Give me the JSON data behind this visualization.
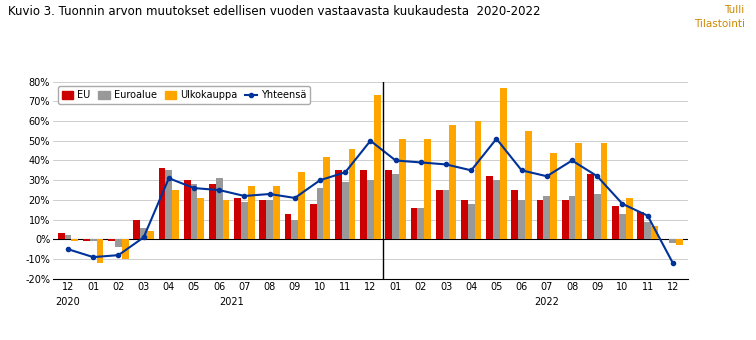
{
  "title": "Kuvio 3. Tuonnin arvon muutokset edellisen vuoden vastaavasta kuukaudesta  2020-2022",
  "watermark": "Tulli\nTilastointi",
  "EU": [
    3,
    -1,
    -1,
    10,
    36,
    30,
    28,
    21,
    20,
    13,
    18,
    35,
    35,
    35,
    16,
    25,
    20,
    32,
    25,
    20,
    20,
    33,
    17,
    14,
    0
  ],
  "Euroalue": [
    2,
    -1,
    -4,
    6,
    35,
    28,
    31,
    19,
    20,
    10,
    26,
    29,
    30,
    33,
    16,
    25,
    18,
    30,
    20,
    22,
    22,
    23,
    13,
    9,
    -2
  ],
  "Ulkokauppa": [
    -1,
    -12,
    -10,
    4,
    25,
    21,
    20,
    27,
    27,
    34,
    42,
    46,
    73,
    51,
    51,
    58,
    60,
    77,
    55,
    44,
    49,
    49,
    21,
    7,
    -3
  ],
  "Yhteensa": [
    -5,
    -9,
    -8,
    1,
    31,
    26,
    25,
    22,
    23,
    21,
    30,
    34,
    50,
    40,
    39,
    38,
    35,
    51,
    35,
    32,
    40,
    32,
    18,
    12,
    -12
  ],
  "divider_index": 12,
  "ylim": [
    -20,
    80
  ],
  "yticks": [
    -20,
    -10,
    0,
    10,
    20,
    30,
    40,
    50,
    60,
    70,
    80
  ],
  "tick_labels": [
    "12",
    "01",
    "02",
    "03",
    "04",
    "05",
    "06",
    "07",
    "08",
    "09",
    "10",
    "11",
    "12",
    "01",
    "02",
    "03",
    "04",
    "05",
    "06",
    "07",
    "08",
    "09",
    "10",
    "11",
    "12"
  ],
  "colors": {
    "EU": "#CC0000",
    "Euroalue": "#999999",
    "Ulkokauppa": "#FFA500",
    "Yhteensa": "#003399",
    "background": "#FFFFFF",
    "grid": "#BBBBBB"
  },
  "bar_width": 0.27
}
